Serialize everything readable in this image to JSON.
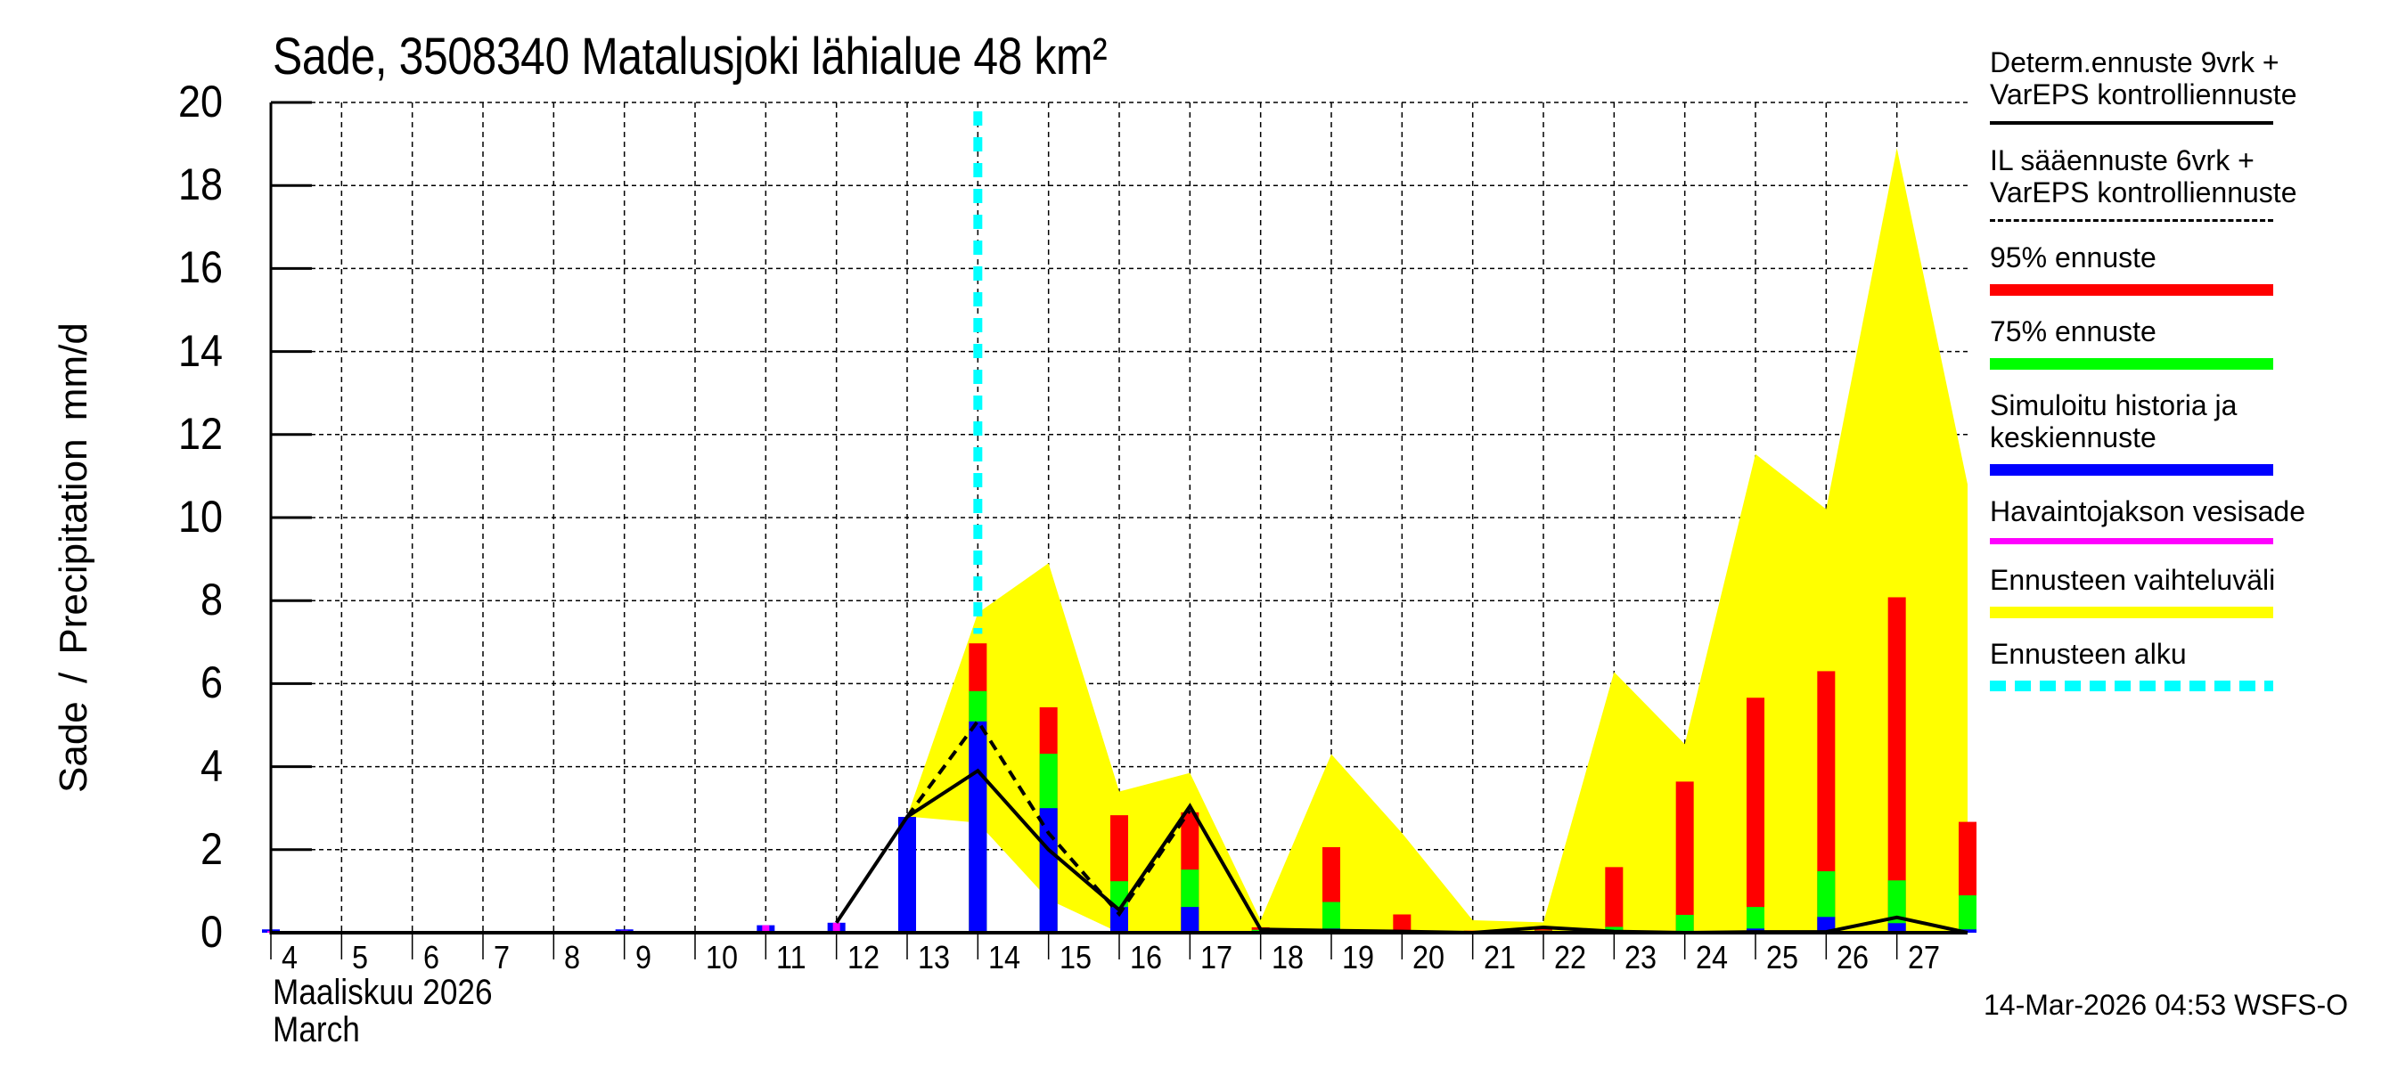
{
  "title": "Sade, 3508340 Matalusjoki lähialue 48 km²",
  "y_axis_label": "Sade / Precipitation   mm/d",
  "month_label_fi": "Maaliskuu 2026",
  "month_label_en": "March",
  "footer": "14-Mar-2026 04:53 WSFS-O",
  "colors": {
    "p95": "#ff0000",
    "p75": "#00ff00",
    "median": "#0000ff",
    "observed": "#ff00ff",
    "range": "#ffff00",
    "forecast_start": "#00ffff",
    "lines": "#000000"
  },
  "legend": [
    {
      "label": "Determ.ennuste 9vrk +\nVarEPS kontrolliennuste",
      "style": "solid-line",
      "color": "#000000"
    },
    {
      "label": "IL sääennuste 6vrk  +\nVarEPS kontrolliennuste",
      "style": "dashed-line",
      "color": "#000000"
    },
    {
      "label": "95% ennuste",
      "style": "bar",
      "color": "#ff0000"
    },
    {
      "label": "75% ennuste",
      "style": "bar",
      "color": "#00ff00"
    },
    {
      "label": "Simuloitu historia ja\nkeskiennuste",
      "style": "bar",
      "color": "#0000ff"
    },
    {
      "label": "Havaintojakson vesisade",
      "style": "thin-bar",
      "color": "#ff00ff"
    },
    {
      "label": "Ennusteen vaihteluväli",
      "style": "bar",
      "color": "#ffff00"
    },
    {
      "label": "Ennusteen alku",
      "style": "dotted-line",
      "color": "#00ffff"
    }
  ],
  "chart_data": {
    "type": "bar",
    "title": "Sade, 3508340 Matalusjoki lähialue 48 km²",
    "xlabel": "Maaliskuu 2026 / March",
    "ylabel": "Sade / Precipitation   mm/d",
    "ylim": [
      0,
      20
    ],
    "yticks": [
      0,
      2,
      4,
      6,
      8,
      10,
      12,
      14,
      16,
      18,
      20
    ],
    "xlim": [
      4,
      28
    ],
    "xticks": [
      4,
      5,
      6,
      7,
      8,
      9,
      10,
      11,
      12,
      13,
      14,
      15,
      16,
      17,
      18,
      19,
      20,
      21,
      22,
      23,
      24,
      25,
      26,
      27
    ],
    "grid": true,
    "legend_position": "right",
    "forecast_start_day": 14,
    "days": [
      4,
      5,
      6,
      7,
      8,
      9,
      10,
      11,
      12,
      13,
      14,
      15,
      16,
      17,
      18,
      19,
      20,
      21,
      22,
      23,
      24,
      25,
      26,
      27,
      28
    ],
    "series": [
      {
        "name": "Simuloitu historia ja keskiennuste",
        "color": "#0000ff",
        "values": [
          0.08,
          0,
          0,
          0,
          0,
          0.08,
          0.03,
          0.18,
          0.24,
          2.79,
          5.09,
          3.0,
          0.62,
          0.62,
          0.03,
          0.1,
          0.02,
          0,
          0.02,
          0.03,
          0.02,
          0.1,
          0.38,
          0.23,
          0.08
        ]
      },
      {
        "name": "75% ennuste",
        "color": "#00ff00",
        "values": [
          null,
          null,
          null,
          null,
          null,
          null,
          null,
          null,
          null,
          null,
          5.82,
          4.31,
          1.24,
          1.52,
          0.07,
          0.74,
          0.05,
          0.01,
          0.05,
          0.14,
          0.43,
          0.62,
          1.48,
          1.26,
          0.9
        ]
      },
      {
        "name": "95% ennuste",
        "color": "#ff0000",
        "values": [
          null,
          null,
          null,
          null,
          null,
          null,
          null,
          null,
          null,
          null,
          6.97,
          5.43,
          2.83,
          2.9,
          0.13,
          2.06,
          0.44,
          0.05,
          0.14,
          1.58,
          3.64,
          5.66,
          6.3,
          8.08,
          2.67
        ]
      },
      {
        "name": "Havaintojakson vesisade",
        "color": "#ff00ff",
        "values": [
          0.04,
          0,
          0,
          0,
          0,
          0.05,
          0,
          0.18,
          0.24,
          null,
          null,
          null,
          null,
          null,
          null,
          null,
          null,
          null,
          null,
          null,
          null,
          null,
          null,
          null,
          null
        ]
      },
      {
        "name": "Ennusteen vaihteluväli (max)",
        "color": "#ffff00",
        "values": [
          null,
          null,
          null,
          null,
          null,
          null,
          null,
          null,
          null,
          2.8,
          7.7,
          8.9,
          3.4,
          3.85,
          0.3,
          4.3,
          2.4,
          0.3,
          0.25,
          6.28,
          4.54,
          11.53,
          10.2,
          18.9,
          10.8
        ]
      },
      {
        "name": "Ennusteen vaihteluväli (min)",
        "color": "#ffff00",
        "values": [
          null,
          null,
          null,
          null,
          null,
          null,
          null,
          null,
          null,
          2.8,
          2.65,
          0.8,
          0.0,
          0.0,
          0.0,
          0.0,
          0.0,
          0.0,
          0.0,
          0.0,
          0.0,
          0.0,
          0.0,
          0.0,
          0.0
        ]
      },
      {
        "name": "Determ.ennuste 9vrk + VarEPS kontrolliennuste",
        "color": "#000000",
        "style": "solid",
        "values": [
          null,
          null,
          null,
          null,
          null,
          null,
          null,
          null,
          0.24,
          2.79,
          3.9,
          2.0,
          0.55,
          3.05,
          0.08,
          0.05,
          0.03,
          0.0,
          0.13,
          0.03,
          0.0,
          0.02,
          0.02,
          0.37,
          0.0
        ]
      },
      {
        "name": "IL sääennuste 6vrk + VarEPS kontrolliennuste",
        "color": "#000000",
        "style": "dashed",
        "values": [
          null,
          null,
          null,
          null,
          null,
          null,
          null,
          null,
          null,
          2.79,
          5.1,
          2.4,
          0.45,
          2.95,
          null,
          null,
          null,
          null,
          null,
          null,
          null,
          null,
          null,
          null,
          null
        ]
      }
    ]
  }
}
